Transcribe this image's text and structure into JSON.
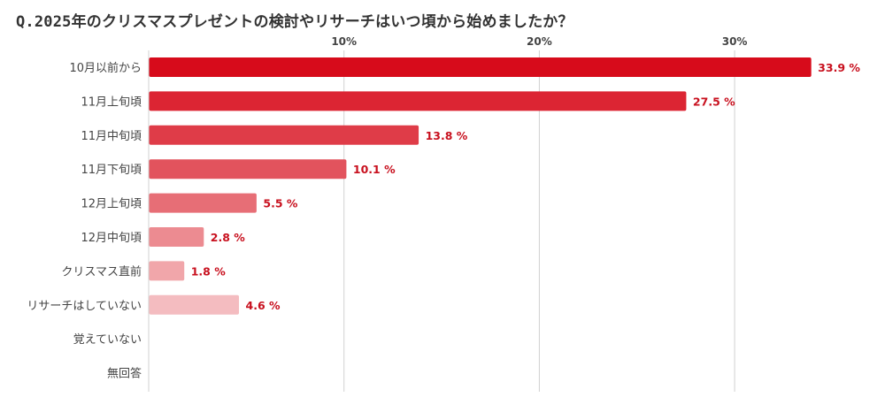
{
  "chart_data": {
    "type": "bar",
    "orientation": "horizontal",
    "title": "Q.2025年のクリスマスプレゼントの検討やリサーチはいつ頃から始めましたか？",
    "categories": [
      "10月以前から",
      "11月上旬頃",
      "11月中旬頃",
      "11月下旬頃",
      "12月上旬頃",
      "12月中旬頃",
      "クリスマス直前",
      "リサーチはしていない",
      "覚えていない",
      "無回答"
    ],
    "values": [
      33.9,
      27.5,
      13.8,
      10.1,
      5.5,
      2.8,
      1.8,
      4.6,
      null,
      null
    ],
    "value_labels": [
      "33.9 %",
      "27.5 %",
      "13.8 %",
      "10.1 %",
      "5.5 %",
      "2.8 %",
      "1.8 %",
      "4.6 %",
      "",
      ""
    ],
    "xticks": [
      10,
      20,
      30
    ],
    "xtick_labels": [
      "10%",
      "20%",
      "30%"
    ],
    "xlim": [
      0,
      34
    ],
    "xaxis_position": "top",
    "grid": true,
    "legend": "none",
    "bar_colors": [
      "#d70b1b",
      "#dc2533",
      "#df3c48",
      "#e2535d",
      "#e76e76",
      "#ec8b91",
      "#f1a6aa",
      "#f4bcc0",
      "#f4bcc0",
      "#f4bcc0"
    ],
    "value_label_color": "#c8101e",
    "grid_color": "#d0d0d0",
    "text_color": "#444444"
  }
}
